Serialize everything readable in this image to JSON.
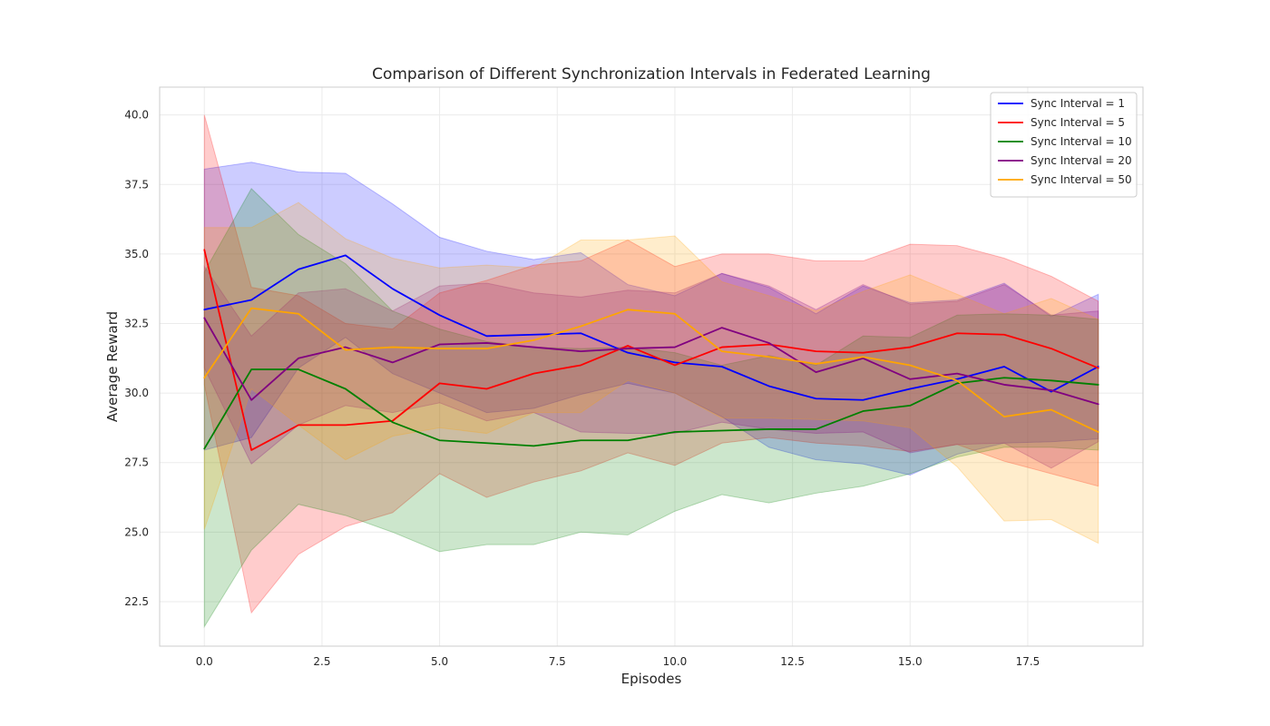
{
  "chart_data": {
    "type": "line",
    "title": "Comparison of Different Synchronization Intervals in Federated Learning",
    "xlabel": "Episodes",
    "ylabel": "Average Reward",
    "xlim": [
      -0.95,
      19.95
    ],
    "ylim": [
      20.9,
      41.0
    ],
    "xticks": [
      0.0,
      2.5,
      5.0,
      7.5,
      10.0,
      12.5,
      15.0,
      17.5
    ],
    "xtick_labels": [
      "0.0",
      "2.5",
      "5.0",
      "7.5",
      "10.0",
      "12.5",
      "15.0",
      "17.5"
    ],
    "yticks": [
      22.5,
      25.0,
      27.5,
      30.0,
      32.5,
      35.0,
      37.5,
      40.0
    ],
    "ytick_labels": [
      "22.5",
      "25.0",
      "27.5",
      "30.0",
      "32.5",
      "35.0",
      "37.5",
      "40.0"
    ],
    "grid": true,
    "legend_position": "top-right",
    "shaded_band": "mean ± std",
    "x": [
      0,
      1,
      2,
      3,
      4,
      5,
      6,
      7,
      8,
      9,
      10,
      11,
      12,
      13,
      14,
      15,
      16,
      17,
      18,
      19
    ],
    "series": [
      {
        "name": "Sync Interval = 1",
        "color": "#0000ff",
        "values": [
          33.0,
          33.35,
          34.45,
          34.95,
          33.75,
          32.8,
          32.05,
          32.1,
          32.15,
          31.45,
          31.1,
          30.95,
          30.25,
          29.8,
          29.75,
          30.15,
          30.5,
          30.95,
          30.05,
          30.95
        ],
        "lower": [
          27.95,
          28.4,
          30.9,
          32.0,
          30.7,
          30.0,
          29.3,
          29.45,
          29.95,
          30.35,
          30.0,
          29.15,
          28.05,
          27.6,
          27.45,
          27.05,
          27.8,
          28.2,
          28.25,
          28.35
        ],
        "upper": [
          38.05,
          38.3,
          37.95,
          37.9,
          36.8,
          35.6,
          35.1,
          34.8,
          35.05,
          33.9,
          33.5,
          34.3,
          33.8,
          32.85,
          33.85,
          33.25,
          33.35,
          33.95,
          32.75,
          33.55
        ]
      },
      {
        "name": "Sync Interval = 5",
        "color": "#ff0000",
        "values": [
          35.15,
          27.95,
          28.85,
          28.85,
          29.0,
          30.35,
          30.15,
          30.7,
          31.0,
          31.7,
          31.0,
          31.65,
          31.75,
          31.5,
          31.45,
          31.65,
          32.15,
          32.1,
          31.6,
          30.9
        ],
        "lower": [
          30.3,
          22.1,
          24.2,
          25.2,
          25.7,
          27.1,
          26.25,
          26.8,
          27.2,
          27.85,
          27.4,
          28.2,
          28.4,
          28.2,
          28.1,
          27.9,
          28.15,
          27.55,
          27.1,
          26.65
        ],
        "upper": [
          40.0,
          33.8,
          33.5,
          32.5,
          32.3,
          33.6,
          34.05,
          34.6,
          34.75,
          35.5,
          34.55,
          35.0,
          35.0,
          34.75,
          34.75,
          35.35,
          35.3,
          34.85,
          34.2,
          33.3
        ]
      },
      {
        "name": "Sync Interval = 10",
        "color": "#008000",
        "values": [
          28.0,
          30.85,
          30.85,
          30.15,
          28.95,
          28.3,
          28.2,
          28.1,
          28.3,
          28.3,
          28.6,
          28.65,
          28.7,
          28.7,
          29.35,
          29.55,
          30.35,
          30.55,
          30.45,
          30.3
        ],
        "lower": [
          21.6,
          24.35,
          26.0,
          25.6,
          25.0,
          24.3,
          24.55,
          24.55,
          25.0,
          24.9,
          25.75,
          26.35,
          26.05,
          26.4,
          26.65,
          27.1,
          27.7,
          28.05,
          28.05,
          27.95
        ],
        "upper": [
          34.35,
          37.35,
          35.7,
          34.65,
          32.95,
          32.3,
          31.85,
          31.65,
          31.6,
          31.65,
          31.45,
          31.0,
          31.35,
          31.0,
          32.05,
          32.0,
          32.8,
          32.85,
          32.8,
          32.65
        ]
      },
      {
        "name": "Sync Interval = 20",
        "color": "#800080",
        "values": [
          32.7,
          29.75,
          31.25,
          31.65,
          31.1,
          31.75,
          31.8,
          31.65,
          31.5,
          31.6,
          31.65,
          32.35,
          31.8,
          30.75,
          31.25,
          30.5,
          30.7,
          30.3,
          30.1,
          29.6
        ],
        "lower": [
          30.9,
          27.45,
          28.85,
          29.55,
          29.3,
          29.65,
          29.0,
          29.3,
          28.6,
          28.55,
          28.55,
          28.95,
          28.7,
          28.55,
          28.6,
          27.85,
          28.15,
          28.2,
          27.3,
          28.25
        ],
        "upper": [
          34.55,
          32.05,
          33.6,
          33.75,
          32.95,
          33.85,
          33.95,
          33.6,
          33.45,
          33.7,
          33.6,
          34.3,
          33.85,
          33.0,
          33.9,
          33.2,
          33.3,
          33.9,
          32.8,
          32.95
        ]
      },
      {
        "name": "Sync Interval = 50",
        "color": "#ffa500",
        "values": [
          30.55,
          33.05,
          32.85,
          31.55,
          31.65,
          31.6,
          31.6,
          31.9,
          32.4,
          33.0,
          32.85,
          31.5,
          31.3,
          31.05,
          31.3,
          31.0,
          30.45,
          29.15,
          29.4,
          28.6
        ],
        "lower": [
          25.1,
          30.15,
          28.85,
          27.6,
          28.45,
          28.75,
          28.55,
          29.3,
          29.3,
          30.45,
          30.0,
          29.1,
          29.1,
          29.05,
          29.0,
          28.75,
          27.35,
          25.4,
          25.45,
          24.6
        ],
        "upper": [
          35.95,
          35.95,
          36.85,
          35.55,
          34.85,
          34.5,
          34.6,
          34.5,
          35.5,
          35.5,
          35.65,
          34.0,
          33.5,
          32.95,
          33.65,
          34.25,
          33.55,
          32.85,
          33.4,
          32.65
        ]
      }
    ]
  }
}
